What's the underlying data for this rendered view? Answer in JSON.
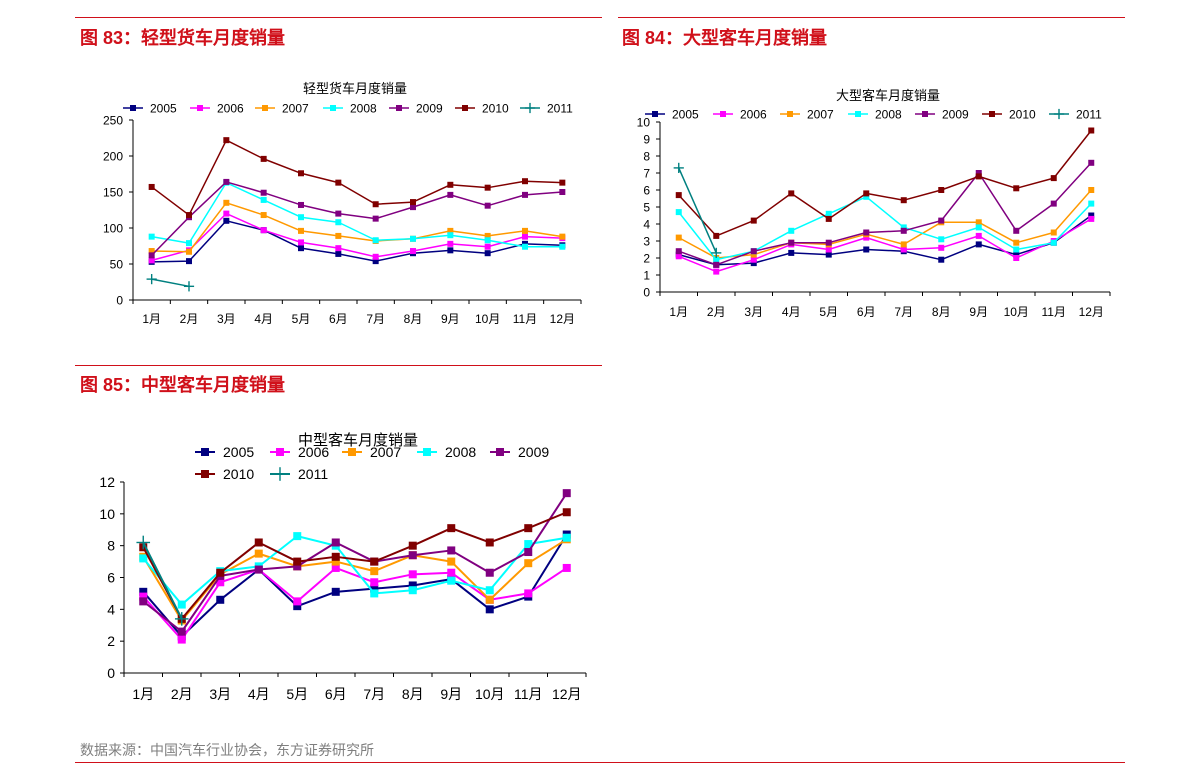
{
  "figures": [
    {
      "heading": "图 83：轻型货车月度销量"
    },
    {
      "heading": "图 84：大型客车月度销量"
    },
    {
      "heading": "图 85：中型客车月度销量"
    }
  ],
  "source": "数据来源：中国汽车行业协会，东方证券研究所",
  "series_styles": {
    "2005": {
      "color": "#000080",
      "marker": "square"
    },
    "2006": {
      "color": "#FF00FF",
      "marker": "square"
    },
    "2007": {
      "color": "#FF9900",
      "marker": "square"
    },
    "2008": {
      "color": "#00FFFF",
      "marker": "square"
    },
    "2009": {
      "color": "#800080",
      "marker": "square"
    },
    "2010": {
      "color": "#800000",
      "marker": "square"
    },
    "2011": {
      "color": "#008080",
      "marker": "plus"
    }
  },
  "chart_data": [
    {
      "type": "line",
      "title": "轻型货车月度销量",
      "categories": [
        "1月",
        "2月",
        "3月",
        "4月",
        "5月",
        "6月",
        "7月",
        "8月",
        "9月",
        "10月",
        "11月",
        "12月"
      ],
      "ylim": [
        0,
        250
      ],
      "yticks": [
        0,
        50,
        100,
        150,
        200,
        250
      ],
      "legend_position": "top",
      "series": [
        {
          "name": "2005",
          "values": [
            53,
            54,
            110,
            97,
            72,
            64,
            54,
            65,
            69,
            65,
            78,
            76
          ]
        },
        {
          "name": "2006",
          "values": [
            55,
            69,
            120,
            97,
            80,
            72,
            60,
            68,
            78,
            74,
            88,
            86
          ]
        },
        {
          "name": "2007",
          "values": [
            68,
            67,
            135,
            118,
            96,
            89,
            82,
            85,
            96,
            89,
            96,
            88
          ]
        },
        {
          "name": "2008",
          "values": [
            88,
            79,
            163,
            139,
            115,
            108,
            83,
            85,
            90,
            83,
            74,
            74
          ]
        },
        {
          "name": "2009",
          "values": [
            62,
            115,
            164,
            149,
            132,
            120,
            113,
            129,
            146,
            131,
            146,
            150
          ]
        },
        {
          "name": "2010",
          "values": [
            157,
            118,
            222,
            196,
            176,
            163,
            133,
            136,
            160,
            156,
            165,
            163
          ]
        },
        {
          "name": "2011",
          "values": [
            29,
            19,
            null,
            null,
            null,
            null,
            null,
            null,
            null,
            null,
            null,
            null
          ]
        }
      ]
    },
    {
      "type": "line",
      "title": "大型客车月度销量",
      "categories": [
        "1月",
        "2月",
        "3月",
        "4月",
        "5月",
        "6月",
        "7月",
        "8月",
        "9月",
        "10月",
        "11月",
        "12月"
      ],
      "ylim": [
        0,
        10
      ],
      "yticks": [
        0,
        1,
        2,
        3,
        4,
        5,
        6,
        7,
        8,
        9,
        10
      ],
      "legend_position": "top",
      "series": [
        {
          "name": "2005",
          "values": [
            2.2,
            1.6,
            1.7,
            2.3,
            2.2,
            2.5,
            2.4,
            1.9,
            2.8,
            2.2,
            2.9,
            4.5
          ]
        },
        {
          "name": "2006",
          "values": [
            2.1,
            1.2,
            1.9,
            2.8,
            2.5,
            3.2,
            2.5,
            2.6,
            3.3,
            2.0,
            3.0,
            4.3
          ]
        },
        {
          "name": "2007",
          "values": [
            3.2,
            2.0,
            2.2,
            2.9,
            2.8,
            3.4,
            2.8,
            4.1,
            4.1,
            2.9,
            3.5,
            6.0
          ]
        },
        {
          "name": "2008",
          "values": [
            4.7,
            1.9,
            2.4,
            3.6,
            4.6,
            5.6,
            3.8,
            3.1,
            3.8,
            2.5,
            2.9,
            5.2
          ]
        },
        {
          "name": "2009",
          "values": [
            2.4,
            1.6,
            2.4,
            2.9,
            2.9,
            3.5,
            3.6,
            4.2,
            7.0,
            3.6,
            5.2,
            7.6
          ]
        },
        {
          "name": "2010",
          "values": [
            5.7,
            3.3,
            4.2,
            5.8,
            4.3,
            5.8,
            5.4,
            6.0,
            6.8,
            6.1,
            6.7,
            9.5
          ]
        },
        {
          "name": "2011",
          "values": [
            7.3,
            2.3,
            null,
            null,
            null,
            null,
            null,
            null,
            null,
            null,
            null,
            null
          ]
        }
      ]
    },
    {
      "type": "line",
      "title": "中型客车月度销量",
      "categories": [
        "1月",
        "2月",
        "3月",
        "4月",
        "5月",
        "6月",
        "7月",
        "8月",
        "9月",
        "10月",
        "11月",
        "12月"
      ],
      "ylim": [
        0,
        12
      ],
      "yticks": [
        0,
        2,
        4,
        6,
        8,
        10,
        12
      ],
      "legend_position": "top",
      "series": [
        {
          "name": "2005",
          "values": [
            5.1,
            2.3,
            4.6,
            6.5,
            4.2,
            5.1,
            5.3,
            5.5,
            5.9,
            4.0,
            4.8,
            8.7
          ]
        },
        {
          "name": "2006",
          "values": [
            4.8,
            2.1,
            5.7,
            6.5,
            4.5,
            6.6,
            5.7,
            6.2,
            6.3,
            4.6,
            5.0,
            6.6
          ]
        },
        {
          "name": "2007",
          "values": [
            7.3,
            3.3,
            6.2,
            7.5,
            6.7,
            7.0,
            6.4,
            7.4,
            7.0,
            4.6,
            6.9,
            8.4
          ]
        },
        {
          "name": "2008",
          "values": [
            7.2,
            4.3,
            6.4,
            6.7,
            8.6,
            8.0,
            5.0,
            5.2,
            5.8,
            5.2,
            8.1,
            8.5
          ]
        },
        {
          "name": "2009",
          "values": [
            4.5,
            2.6,
            6.1,
            6.5,
            6.7,
            8.2,
            7.0,
            7.4,
            7.7,
            6.3,
            7.6,
            11.3
          ]
        },
        {
          "name": "2010",
          "values": [
            7.9,
            3.4,
            6.3,
            8.2,
            7.0,
            7.3,
            7.0,
            8.0,
            9.1,
            8.2,
            9.1,
            10.1
          ]
        },
        {
          "name": "2011",
          "values": [
            8.2,
            3.4,
            null,
            null,
            null,
            null,
            null,
            null,
            null,
            null,
            null,
            null
          ]
        }
      ]
    }
  ]
}
